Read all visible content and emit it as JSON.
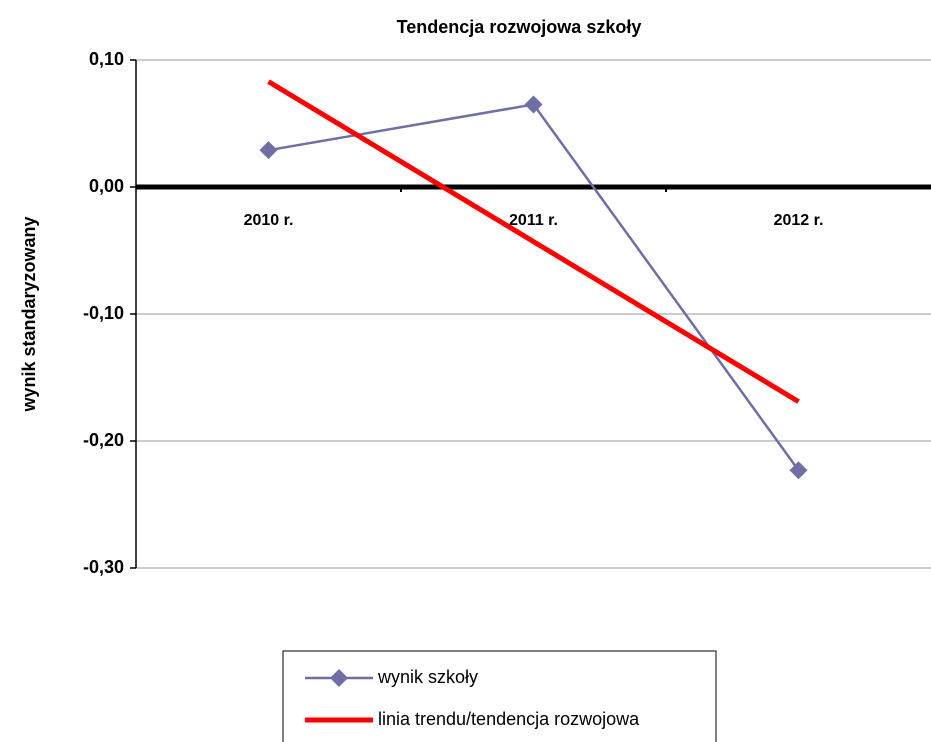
{
  "chart_data": {
    "type": "line",
    "title": "Tendencja rozwojowa szkoły",
    "ylabel": "wynik standaryzowany",
    "categories": [
      "2010 r.",
      "2011 r.",
      "2012 r."
    ],
    "series": [
      {
        "name": "wynik szkoły",
        "color": "#6f6fa6",
        "marker": "diamond",
        "values": [
          0.029,
          0.065,
          -0.223
        ]
      },
      {
        "name": "linia trendu/tendencja rozwojowa",
        "color": "#ff0000",
        "values": [
          0.083,
          -0.043,
          -0.169
        ]
      }
    ],
    "ylim": [
      -0.3,
      0.1
    ],
    "yticks": [
      {
        "value": -0.3,
        "label": "-0,30"
      },
      {
        "value": -0.2,
        "label": "-0,20"
      },
      {
        "value": -0.1,
        "label": "-0,10"
      },
      {
        "value": 0.0,
        "label": "0,00"
      },
      {
        "value": 0.1,
        "label": "0,10"
      }
    ],
    "grid": true,
    "legend": "bottom"
  }
}
